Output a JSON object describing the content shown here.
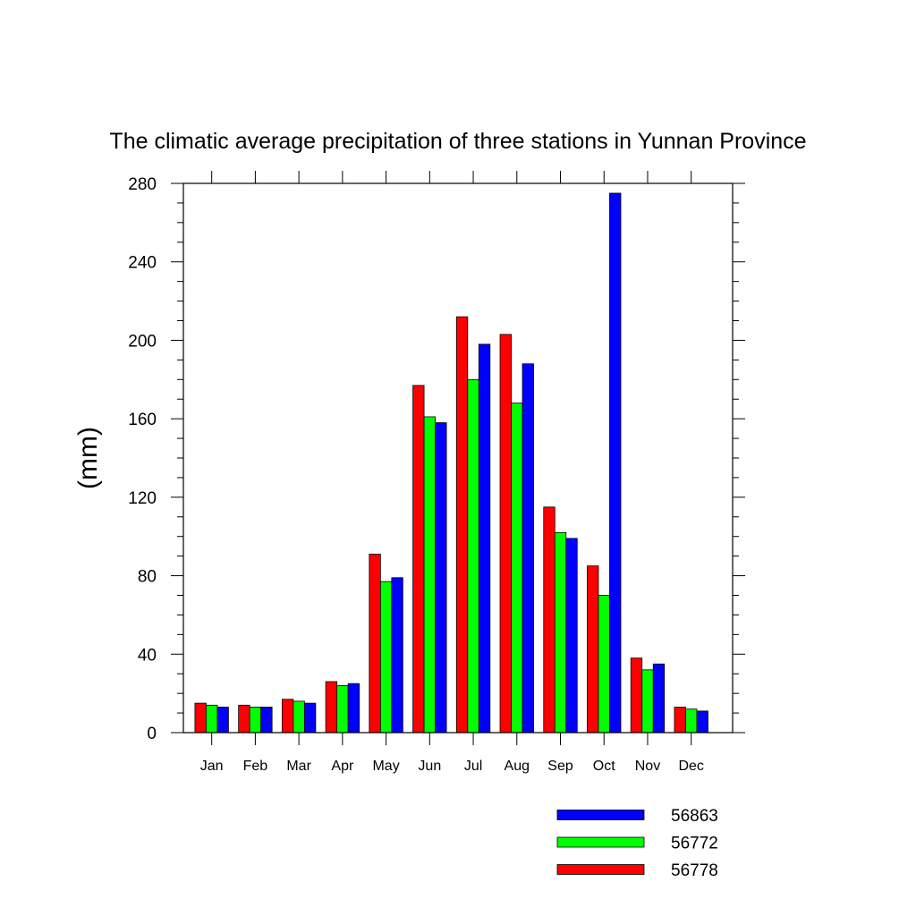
{
  "chart_data": {
    "type": "bar",
    "title": "The climatic average precipitation of three stations in Yunnan Province",
    "xlabel": "",
    "ylabel": "(mm)",
    "ylim": [
      0,
      280
    ],
    "yticks": [
      "0",
      "40",
      "80",
      "120",
      "160",
      "200",
      "240",
      "280"
    ],
    "categories": [
      "Jan",
      "Feb",
      "Mar",
      "Apr",
      "May",
      "Jun",
      "Jul",
      "Aug",
      "Sep",
      "Oct",
      "Nov",
      "Dec"
    ],
    "series": [
      {
        "name": "56778",
        "color": "#ff0000",
        "values": [
          15,
          14,
          17,
          26,
          91,
          177,
          212,
          203,
          115,
          85,
          38,
          13
        ]
      },
      {
        "name": "56772",
        "color": "#00ff00",
        "values": [
          14,
          13,
          16,
          24,
          77,
          161,
          180,
          168,
          102,
          70,
          32,
          12
        ]
      },
      {
        "name": "56863",
        "color": "#0000ff",
        "values": [
          13,
          13,
          15,
          25,
          79,
          158,
          198,
          188,
          99,
          275,
          35,
          11
        ]
      }
    ],
    "legend": {
      "position": "bottom-right",
      "order": [
        "56863",
        "56772",
        "56778"
      ]
    },
    "grid": false
  }
}
